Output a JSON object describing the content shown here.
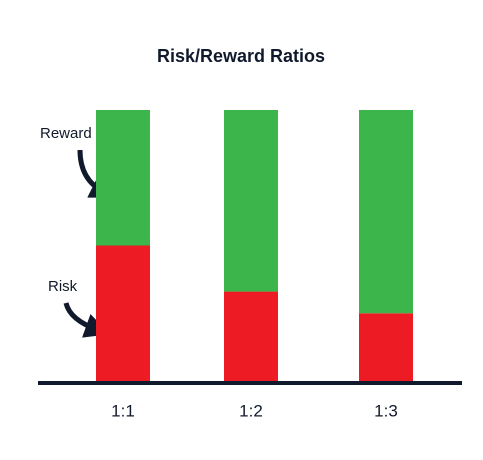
{
  "chart_data": {
    "type": "stacked_bar",
    "title": "Risk/Reward Ratios",
    "categories": [
      "1:1",
      "1:2",
      "1:3"
    ],
    "series": [
      {
        "name": "Risk",
        "color": "#ed1c24",
        "values": [
          50,
          33,
          25
        ]
      },
      {
        "name": "Reward",
        "color": "#3cb54a",
        "values": [
          50,
          67,
          75
        ]
      }
    ],
    "ylim": [
      0,
      100
    ]
  }
}
